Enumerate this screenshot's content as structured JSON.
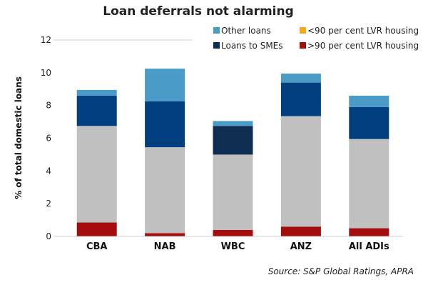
{
  "chart_data": {
    "type": "bar",
    "stacked": true,
    "title": "Loan deferrals not alarming",
    "ylabel": "% of total domestic loans",
    "xlabel": "",
    "ylim": [
      0,
      12
    ],
    "yticks": [
      0,
      2,
      4,
      6,
      8,
      10,
      12
    ],
    "grid": false,
    "legend_position": "top-right",
    "source": "Source: S&P Global Ratings, APRA",
    "categories": [
      "CBA",
      "NAB",
      "WBC",
      "ANZ",
      "All ADIs"
    ],
    "series": [
      {
        "name": ">90 per cent LVR housing",
        "color": "#a50d0d",
        "values": [
          0.85,
          0.2,
          0.4,
          0.6,
          0.5
        ]
      },
      {
        "name": "<90 per cent LVR housing",
        "color": "#c0c0c0",
        "values": [
          5.9,
          5.25,
          4.6,
          6.75,
          5.45
        ]
      },
      {
        "name": "Loans to SMEs",
        "color": "#013f7f",
        "values": [
          1.85,
          2.8,
          1.75,
          2.05,
          1.95
        ]
      },
      {
        "name": "Other loans",
        "color": "#4a9bc7",
        "values": [
          0.35,
          2.0,
          0.3,
          0.55,
          0.7
        ]
      }
    ],
    "legend": [
      {
        "name": "Other loans",
        "swatch": "#4a9bc7"
      },
      {
        "name": "<90 per cent LVR housing",
        "swatch": "#f5a81c"
      },
      {
        "name": "Loans to SMEs",
        "swatch": "#0d2d57"
      },
      {
        "name": ">90 per cent LVR housing",
        "swatch": "#a50d0d"
      }
    ],
    "wbc_sme_color": "#0f2c52"
  }
}
